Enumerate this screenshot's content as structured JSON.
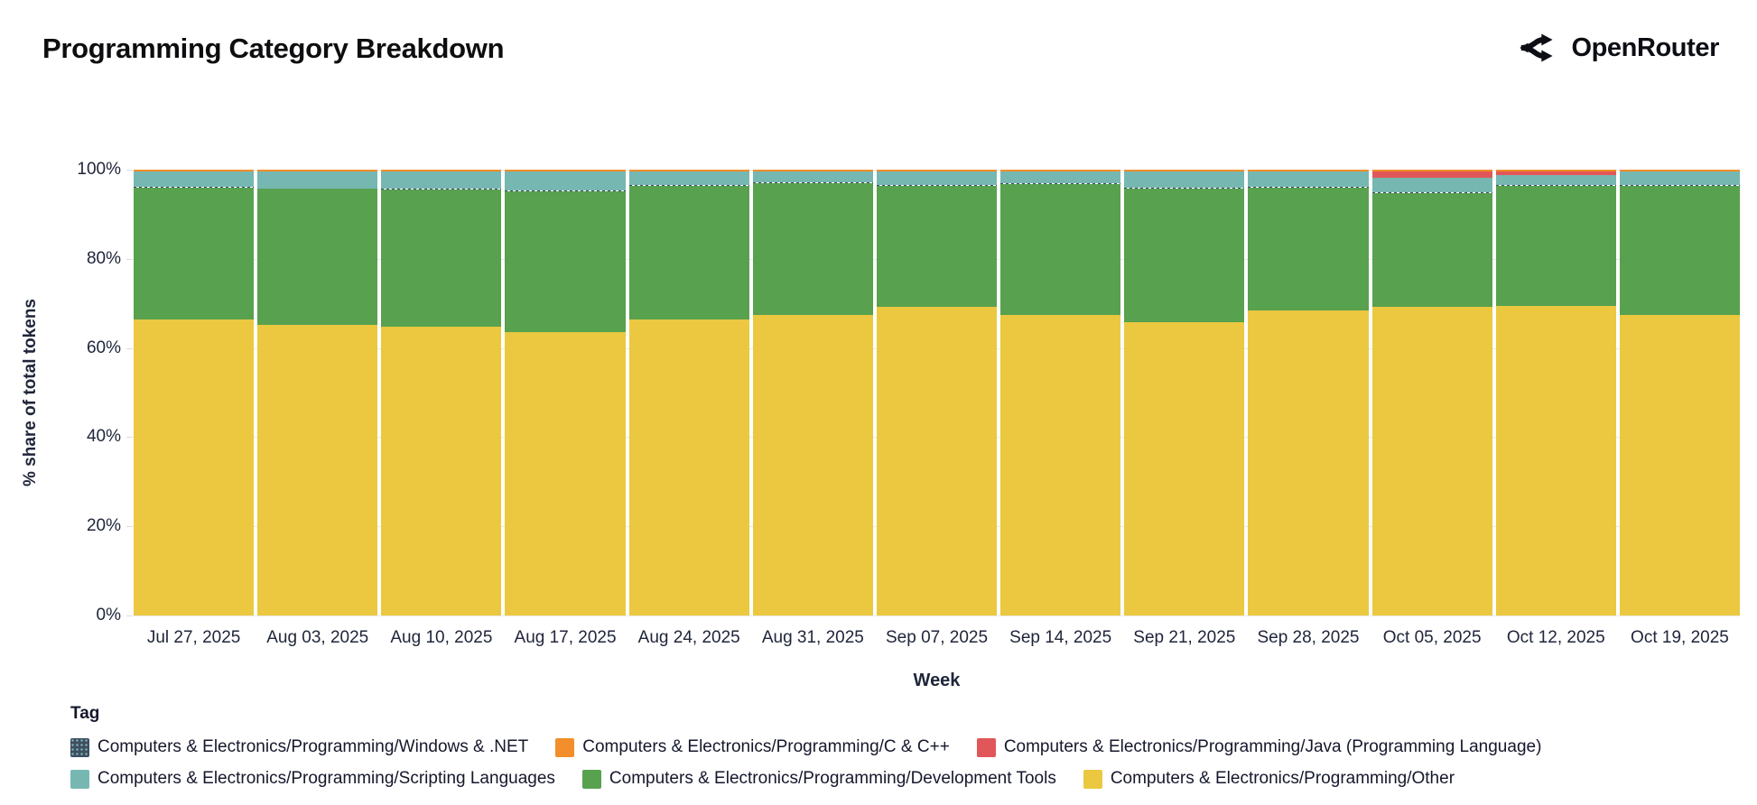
{
  "header": {
    "title": "Programming Category Breakdown",
    "brand": "OpenRouter"
  },
  "chart_data": {
    "type": "bar",
    "stacked": true,
    "title": "Programming Category Breakdown",
    "xlabel": "Week",
    "ylabel": "% share of total tokens",
    "ylim": [
      0,
      100
    ],
    "grid": true,
    "y_ticks": [
      {
        "value": 0,
        "label": "0%"
      },
      {
        "value": 20,
        "label": "20%"
      },
      {
        "value": 40,
        "label": "40%"
      },
      {
        "value": 60,
        "label": "60%"
      },
      {
        "value": 80,
        "label": "80%"
      },
      {
        "value": 100,
        "label": "100%"
      }
    ],
    "categories": [
      "Jul 27, 2025",
      "Aug 03, 2025",
      "Aug 10, 2025",
      "Aug 17, 2025",
      "Aug 24, 2025",
      "Aug 31, 2025",
      "Sep 07, 2025",
      "Sep 14, 2025",
      "Sep 21, 2025",
      "Sep 28, 2025",
      "Oct 05, 2025",
      "Oct 12, 2025",
      "Oct 19, 2025"
    ],
    "series": [
      {
        "key": "other",
        "name": "Computers & Electronics/Programming/Other",
        "color": "#EBC840",
        "values": [
          66.5,
          65.2,
          64.7,
          63.6,
          66.5,
          67.5,
          69.3,
          67.4,
          65.8,
          68.5,
          69.3,
          69.5,
          67.5
        ]
      },
      {
        "key": "development-tools",
        "name": "Computers & Electronics/Programming/Development Tools",
        "color": "#57A14F",
        "values": [
          29.5,
          30.5,
          30.9,
          31.6,
          29.95,
          29.45,
          27.15,
          29.35,
          29.95,
          27.45,
          25.4,
          26.95,
          28.85
        ]
      },
      {
        "key": "windows-net",
        "name": "Computers & Electronics/Programming/Windows & .NET",
        "color": "#3E4E63",
        "pattern": "dots",
        "values": [
          0.15,
          0.15,
          0.15,
          0.15,
          0.15,
          0.15,
          0.15,
          0.15,
          0.15,
          0.15,
          0.15,
          0.15,
          0.15
        ]
      },
      {
        "key": "scripting-languages",
        "name": "Computers & Electronics/Programming/Scripting Languages",
        "color": "#76B7B2",
        "values": [
          3.45,
          3.75,
          3.85,
          4.25,
          3.0,
          2.5,
          3.0,
          2.7,
          3.7,
          3.5,
          3.4,
          2.25,
          3.1
        ]
      },
      {
        "key": "java",
        "name": "Computers & Electronics/Programming/Java (Programming Language)",
        "color": "#E15759",
        "values": [
          0,
          0,
          0,
          0,
          0,
          0,
          0,
          0,
          0,
          0,
          1.35,
          0.75,
          0
        ]
      },
      {
        "key": "c-cpp",
        "name": "Computers & Electronics/Programming/C & C++",
        "color": "#F28E2B",
        "values": [
          0.4,
          0.4,
          0.4,
          0.4,
          0.4,
          0.4,
          0.4,
          0.4,
          0.4,
          0.4,
          0.4,
          0.4,
          0.4
        ]
      }
    ],
    "legend": {
      "title": "Tag",
      "position": "bottom",
      "order": [
        "windows-net",
        "c-cpp",
        "java",
        "scripting-languages",
        "development-tools",
        "other"
      ]
    }
  }
}
